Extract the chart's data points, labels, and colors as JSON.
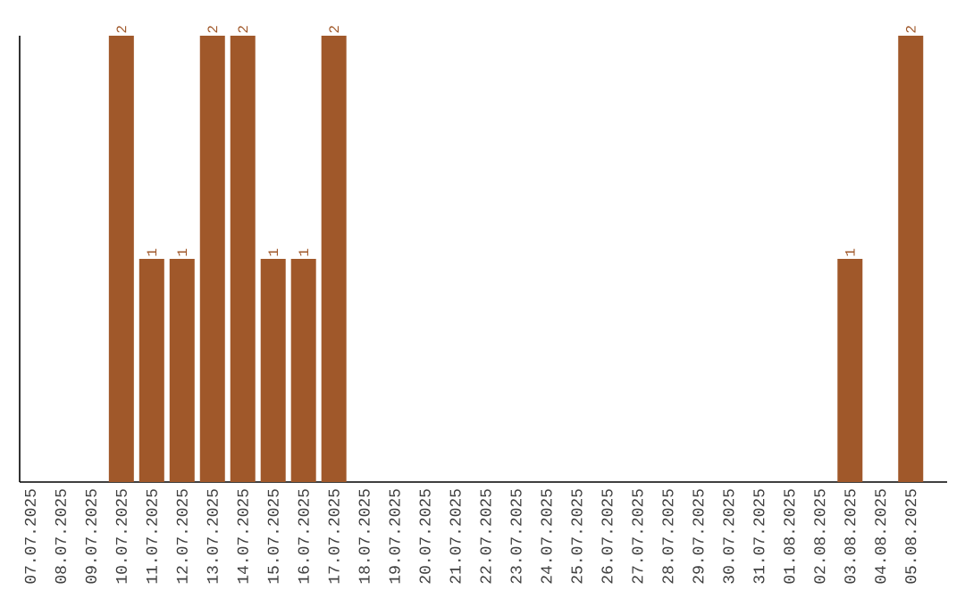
{
  "chart_data": {
    "type": "bar",
    "categories": [
      "07.07.2025",
      "08.07.2025",
      "09.07.2025",
      "10.07.2025",
      "11.07.2025",
      "12.07.2025",
      "13.07.2025",
      "14.07.2025",
      "15.07.2025",
      "16.07.2025",
      "17.07.2025",
      "18.07.2025",
      "19.07.2025",
      "20.07.2025",
      "21.07.2025",
      "22.07.2025",
      "23.07.2025",
      "24.07.2025",
      "25.07.2025",
      "26.07.2025",
      "27.07.2025",
      "28.07.2025",
      "29.07.2025",
      "30.07.2025",
      "31.07.2025",
      "01.08.2025",
      "02.08.2025",
      "03.08.2025",
      "04.08.2025",
      "05.08.2025"
    ],
    "values": [
      null,
      null,
      null,
      2,
      1,
      1,
      2,
      2,
      1,
      1,
      2,
      null,
      null,
      null,
      null,
      null,
      null,
      null,
      null,
      null,
      null,
      null,
      null,
      null,
      null,
      null,
      null,
      1,
      null,
      2
    ],
    "color": "#a0582a",
    "ylim": [
      0,
      2
    ],
    "data_labels": true,
    "tick_labels": "x"
  }
}
